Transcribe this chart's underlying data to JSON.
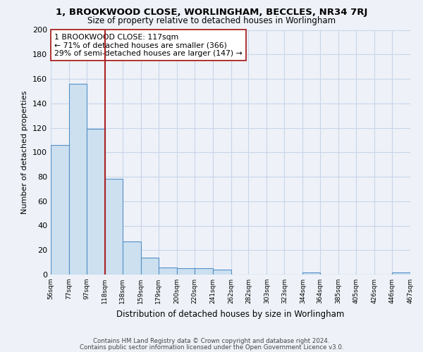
{
  "title1": "1, BROOKWOOD CLOSE, WORLINGHAM, BECCLES, NR34 7RJ",
  "title2": "Size of property relative to detached houses in Worlingham",
  "xlabel": "Distribution of detached houses by size in Worlingham",
  "ylabel": "Number of detached properties",
  "bar_edges": [
    56,
    77,
    97,
    118,
    138,
    159,
    179,
    200,
    220,
    241,
    262,
    282,
    303,
    323,
    344,
    364,
    385,
    405,
    426,
    446,
    467
  ],
  "bar_heights": [
    106,
    156,
    119,
    78,
    27,
    14,
    6,
    5,
    5,
    4,
    0,
    0,
    0,
    0,
    2,
    0,
    0,
    0,
    0,
    2
  ],
  "bar_color": "#cce0f0",
  "bar_edge_color": "#5590c8",
  "grid_color": "#c8d4e8",
  "vline_x": 118,
  "vline_color": "#aa2222",
  "annotation_line1": "1 BROOKWOOD CLOSE: 117sqm",
  "annotation_line2": "← 71% of detached houses are smaller (366)",
  "annotation_line3": "29% of semi-detached houses are larger (147) →",
  "ylim": [
    0,
    200
  ],
  "yticks": [
    0,
    20,
    40,
    60,
    80,
    100,
    120,
    140,
    160,
    180,
    200
  ],
  "footer1": "Contains HM Land Registry data © Crown copyright and database right 2024.",
  "footer2": "Contains public sector information licensed under the Open Government Licence v3.0.",
  "bg_color": "#eef2f8"
}
